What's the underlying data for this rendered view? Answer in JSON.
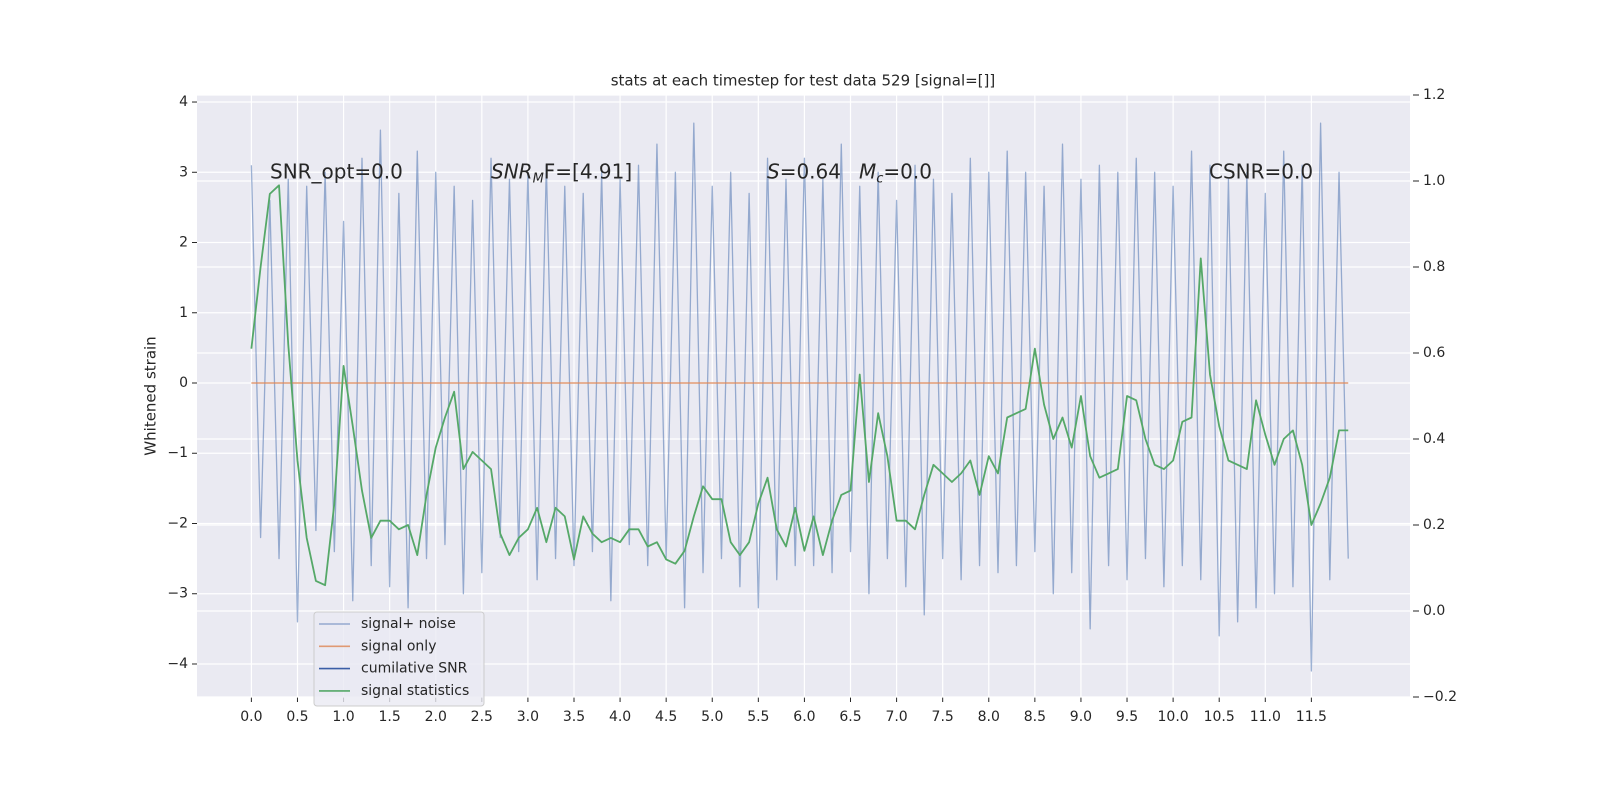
{
  "chart_data": {
    "type": "line",
    "title": "stats at each timestep for test data 529 [signal=[]]",
    "y_label": "Whitened strain",
    "grid": true,
    "background": "#eaeaf2",
    "legend": "lower left",
    "x": [
      0.0,
      0.1,
      0.2,
      0.3,
      0.4,
      0.5,
      0.6,
      0.7,
      0.8,
      0.9,
      1.0,
      1.1,
      1.2,
      1.3,
      1.4,
      1.5,
      1.6,
      1.7,
      1.8,
      1.9,
      2.0,
      2.1,
      2.2,
      2.3,
      2.4,
      2.5,
      2.6,
      2.7,
      2.8,
      2.9,
      3.0,
      3.1,
      3.2,
      3.3,
      3.4,
      3.5,
      3.6,
      3.7,
      3.8,
      3.9,
      4.0,
      4.1,
      4.2,
      4.3,
      4.4,
      4.5,
      4.6,
      4.7,
      4.8,
      4.9,
      5.0,
      5.1,
      5.2,
      5.3,
      5.4,
      5.5,
      5.6,
      5.7,
      5.8,
      5.9,
      6.0,
      6.1,
      6.2,
      6.3,
      6.4,
      6.5,
      6.6,
      6.7,
      6.8,
      6.9,
      7.0,
      7.1,
      7.2,
      7.3,
      7.4,
      7.5,
      7.6,
      7.7,
      7.8,
      7.9,
      8.0,
      8.1,
      8.2,
      8.3,
      8.4,
      8.5,
      8.6,
      8.7,
      8.8,
      8.9,
      9.0,
      9.1,
      9.2,
      9.3,
      9.4,
      9.5,
      9.6,
      9.7,
      9.8,
      9.9,
      10.0,
      10.1,
      10.2,
      10.3,
      10.4,
      10.5,
      10.6,
      10.7,
      10.8,
      10.9,
      11.0,
      11.1,
      11.2,
      11.3,
      11.4,
      11.5,
      11.6,
      11.7,
      11.8,
      11.9
    ],
    "series": [
      {
        "name": "signal+ noise",
        "color": "#4c72b0",
        "values": [
          3.1,
          -2.2,
          2.6,
          -2.5,
          2.9,
          -3.4,
          2.8,
          -2.1,
          3.0,
          -2.4,
          2.3,
          -3.1,
          3.2,
          -2.6,
          3.6,
          -2.9,
          2.7,
          -3.2,
          3.3,
          -2.5,
          3.0,
          -2.3,
          2.8,
          -3.0,
          2.6,
          -2.7,
          3.2,
          -2.2,
          2.9,
          -2.4,
          3.0,
          -2.8,
          3.1,
          -2.5,
          2.8,
          -2.6,
          2.7,
          -2.4,
          3.0,
          -3.1,
          2.9,
          -2.3,
          3.1,
          -2.6,
          3.4,
          -2.5,
          3.0,
          -3.2,
          3.7,
          -2.7,
          2.8,
          -2.5,
          3.0,
          -2.9,
          2.7,
          -3.2,
          3.2,
          -2.8,
          2.9,
          -2.6,
          3.2,
          -2.6,
          2.9,
          -2.7,
          3.4,
          -2.4,
          2.8,
          -3.0,
          3.0,
          -2.5,
          2.6,
          -2.9,
          3.1,
          -3.3,
          2.9,
          -2.5,
          2.7,
          -2.8,
          3.2,
          -2.6,
          3.0,
          -2.7,
          3.3,
          -2.6,
          3.0,
          -2.4,
          2.8,
          -3.0,
          3.4,
          -2.7,
          2.9,
          -3.5,
          3.1,
          -2.6,
          3.0,
          -2.8,
          3.2,
          -2.5,
          3.0,
          -2.9,
          2.8,
          -2.6,
          3.3,
          -2.8,
          3.1,
          -3.6,
          2.9,
          -3.4,
          3.0,
          -3.2,
          2.7,
          -3.0,
          3.3,
          -2.9,
          3.1,
          -4.1,
          3.7,
          -2.8,
          3.0,
          -2.5
        ]
      },
      {
        "name": "signal only",
        "color": "#dd8452",
        "values": [
          0,
          0,
          0,
          0,
          0,
          0,
          0,
          0,
          0,
          0,
          0,
          0,
          0,
          0,
          0,
          0,
          0,
          0,
          0,
          0,
          0,
          0,
          0,
          0,
          0,
          0,
          0,
          0,
          0,
          0,
          0,
          0,
          0,
          0,
          0,
          0,
          0,
          0,
          0,
          0,
          0,
          0,
          0,
          0,
          0,
          0,
          0,
          0,
          0,
          0,
          0,
          0,
          0,
          0,
          0,
          0,
          0,
          0,
          0,
          0,
          0,
          0,
          0,
          0,
          0,
          0,
          0,
          0,
          0,
          0,
          0,
          0,
          0,
          0,
          0,
          0,
          0,
          0,
          0,
          0,
          0,
          0,
          0,
          0,
          0,
          0,
          0,
          0,
          0,
          0,
          0,
          0,
          0,
          0,
          0,
          0,
          0,
          0,
          0,
          0,
          0,
          0,
          0,
          0,
          0,
          0,
          0,
          0,
          0,
          0,
          0,
          0,
          0,
          0,
          0,
          0,
          0,
          0,
          0,
          0
        ]
      },
      {
        "name": "cumilative SNR",
        "color": "#3b5ea6"
      },
      {
        "name": "signal statistics",
        "color": "#55a868",
        "axis": "y2",
        "values": [
          0.61,
          0.8,
          0.97,
          0.99,
          0.62,
          0.35,
          0.17,
          0.07,
          0.06,
          0.25,
          0.57,
          0.43,
          0.28,
          0.17,
          0.21,
          0.21,
          0.19,
          0.2,
          0.13,
          0.27,
          0.38,
          0.45,
          0.51,
          0.33,
          0.37,
          0.35,
          0.33,
          0.18,
          0.13,
          0.17,
          0.19,
          0.24,
          0.16,
          0.24,
          0.22,
          0.12,
          0.22,
          0.18,
          0.16,
          0.17,
          0.16,
          0.19,
          0.19,
          0.15,
          0.16,
          0.12,
          0.11,
          0.14,
          0.22,
          0.29,
          0.26,
          0.26,
          0.16,
          0.13,
          0.16,
          0.25,
          0.31,
          0.19,
          0.15,
          0.24,
          0.14,
          0.22,
          0.13,
          0.21,
          0.27,
          0.28,
          0.55,
          0.3,
          0.46,
          0.36,
          0.21,
          0.21,
          0.19,
          0.27,
          0.34,
          0.32,
          0.3,
          0.32,
          0.35,
          0.27,
          0.36,
          0.32,
          0.45,
          0.46,
          0.47,
          0.61,
          0.48,
          0.4,
          0.45,
          0.38,
          0.5,
          0.36,
          0.31,
          0.32,
          0.33,
          0.5,
          0.49,
          0.4,
          0.34,
          0.33,
          0.35,
          0.44,
          0.45,
          0.82,
          0.55,
          0.43,
          0.35,
          0.34,
          0.33,
          0.49,
          0.41,
          0.34,
          0.4,
          0.42,
          0.34,
          0.2,
          0.25,
          0.31,
          0.42,
          0.42
        ]
      }
    ],
    "annotations": [
      {
        "text": "SNR_opt=0.0"
      },
      {
        "symbol": "SNR",
        "sub": "M",
        "text": "F=[4.91]"
      },
      {
        "symbol": "S",
        "text": "=0.64"
      },
      {
        "symbol": "M",
        "sub": "c",
        "text": "=0.0"
      },
      {
        "text": "CSNR=0.0"
      }
    ],
    "xlim": [
      -0.59,
      12.57
    ],
    "xticks": [
      {
        "value": 0,
        "label": "0.0"
      },
      0.5,
      {
        "value": 1,
        "label": "1.0"
      },
      1.5,
      {
        "value": 2,
        "label": "2.0"
      },
      2.5,
      {
        "value": 3,
        "label": "3.0"
      },
      3.5,
      {
        "value": 4,
        "label": "4.0"
      },
      4.5,
      {
        "value": 5,
        "label": "5.0"
      },
      5.5,
      {
        "value": 6,
        "label": "6.0"
      },
      6.5,
      {
        "value": 7,
        "label": "7.0"
      },
      7.5,
      {
        "value": 8,
        "label": "8.0"
      },
      8.5,
      {
        "value": 9,
        "label": "9.0"
      },
      9.5,
      {
        "value": 10,
        "label": "10.0"
      },
      10.5,
      {
        "value": 11,
        "label": "11.0"
      },
      11.5
    ],
    "ylim": [
      -4.47,
      4.1
    ],
    "yticks": [
      {
        "value": -4,
        "label": "−4"
      },
      {
        "value": -3,
        "label": "−3"
      },
      {
        "value": -2,
        "label": "−2"
      },
      {
        "value": -1,
        "label": "−1"
      },
      0,
      1,
      2,
      3,
      4
    ],
    "y2lim": [
      -0.2,
      1.2
    ],
    "y2ticks": [
      {
        "value": -0.2,
        "label": "−0.2"
      },
      {
        "value": 0,
        "label": "0.0"
      },
      0.2,
      0.4,
      0.6,
      0.8,
      {
        "value": 1,
        "label": "1.0"
      },
      1.2
    ]
  }
}
